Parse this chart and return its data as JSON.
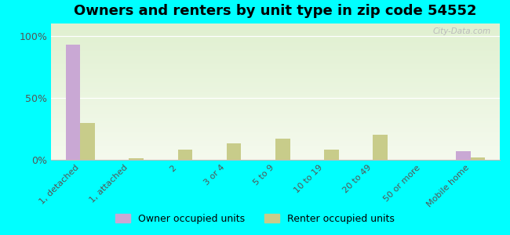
{
  "title": "Owners and renters by unit type in zip code 54552",
  "categories": [
    "1, detached",
    "1, attached",
    "2",
    "3 or 4",
    "5 to 9",
    "10 to 19",
    "20 to 49",
    "50 or more",
    "Mobile home"
  ],
  "owner_values": [
    93,
    0,
    0,
    0,
    0,
    0,
    0,
    0,
    7
  ],
  "renter_values": [
    30,
    1,
    8,
    13,
    17,
    8,
    20,
    0,
    2
  ],
  "owner_color": "#c9a8d4",
  "renter_color": "#c8cc8a",
  "bg_color": "#00ffff",
  "yticks": [
    0,
    50,
    100
  ],
  "ytick_labels": [
    "0%",
    "50%",
    "100%"
  ],
  "ylim": [
    0,
    110
  ],
  "bar_width": 0.3,
  "title_fontsize": 13,
  "legend_owner": "Owner occupied units",
  "legend_renter": "Renter occupied units"
}
